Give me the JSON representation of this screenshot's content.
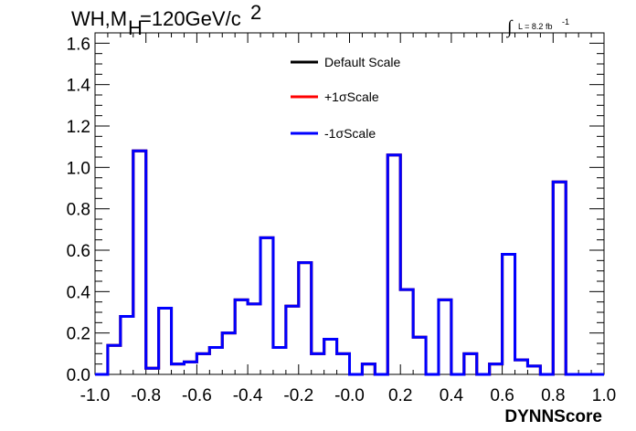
{
  "chart_data": {
    "type": "line",
    "step": true,
    "title_parts": {
      "main": "WH,M",
      "sub": "H",
      "rest": "=120GeV/c",
      "sup": "2"
    },
    "lumi_parts": {
      "integral": "∫",
      "text": "L = 8.2 fb",
      "sup": "-1"
    },
    "xlabel": "DYNNScore",
    "ylabel": "",
    "xlim": [
      -1.0,
      1.0
    ],
    "ylim": [
      0,
      1.65
    ],
    "x_ticks": [
      "-1.0",
      "-0.8",
      "-0.6",
      "-0.4",
      "-0.2",
      "-0.0",
      "0.2",
      "0.4",
      "0.6",
      "0.8",
      "1.0"
    ],
    "y_ticks": [
      "0.0",
      "0.2",
      "0.4",
      "0.6",
      "0.8",
      "1.0",
      "1.2",
      "1.4",
      "1.6"
    ],
    "legend_position": "top-center",
    "bin_edges_start": -1.0,
    "bin_width": 0.05,
    "series": [
      {
        "name": "Default Scale",
        "color": "#000000",
        "values": [
          0,
          0.14,
          0.28,
          1.08,
          0.03,
          0.32,
          0.05,
          0.06,
          0.1,
          0.13,
          0.2,
          0.36,
          0.34,
          0.66,
          0.13,
          0.33,
          0.54,
          0.1,
          0.17,
          0.1,
          0.0,
          0.05,
          0.0,
          1.06,
          0.41,
          0.18,
          0.0,
          0.36,
          0.0,
          0.1,
          0.0,
          0.05,
          0.58,
          0.07,
          0.04,
          0.0,
          0.93,
          0.0,
          0.0,
          0.0
        ]
      },
      {
        "name": "+1σScale",
        "color": "#ff0000",
        "values": [
          0,
          0.14,
          0.28,
          1.08,
          0.03,
          0.32,
          0.05,
          0.06,
          0.1,
          0.13,
          0.2,
          0.36,
          0.34,
          0.66,
          0.13,
          0.33,
          0.54,
          0.1,
          0.17,
          0.1,
          0.0,
          0.05,
          0.0,
          1.06,
          0.41,
          0.18,
          0.0,
          0.36,
          0.0,
          0.1,
          0.0,
          0.05,
          0.58,
          0.07,
          0.04,
          0.0,
          0.93,
          0.0,
          0.0,
          0.0
        ]
      },
      {
        "name": "-1σScale",
        "color": "#0000ff",
        "values": [
          0,
          0.14,
          0.28,
          1.08,
          0.03,
          0.32,
          0.05,
          0.06,
          0.1,
          0.13,
          0.2,
          0.36,
          0.34,
          0.66,
          0.13,
          0.33,
          0.54,
          0.1,
          0.17,
          0.1,
          0.0,
          0.05,
          0.0,
          1.06,
          0.41,
          0.18,
          0.0,
          0.36,
          0.0,
          0.1,
          0.0,
          0.05,
          0.58,
          0.07,
          0.04,
          0.0,
          0.93,
          0.0,
          0.0,
          0.0
        ]
      }
    ]
  }
}
